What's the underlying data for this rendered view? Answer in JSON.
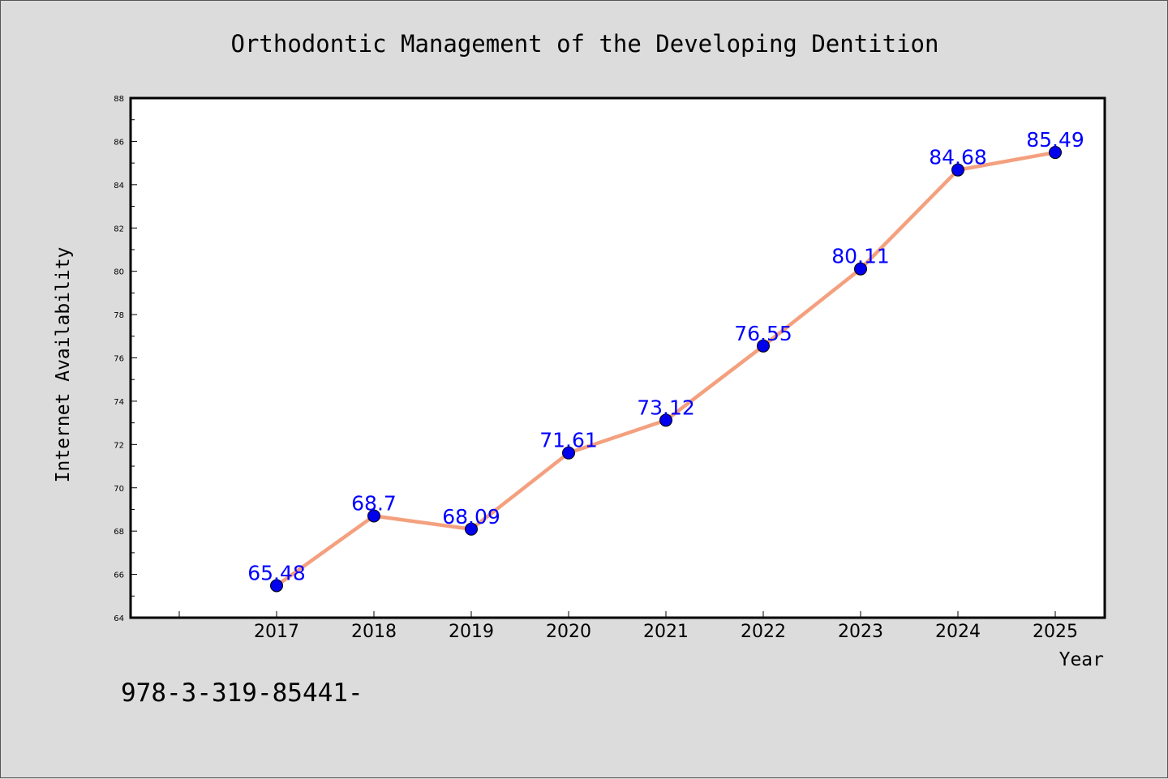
{
  "chart_data": {
    "type": "line",
    "title": "Orthodontic Management of the Developing Dentition",
    "xlabel": "Year",
    "ylabel": "Internet Availability",
    "categories": [
      "2017",
      "2018",
      "2019",
      "2020",
      "2021",
      "2022",
      "2023",
      "2024",
      "2025"
    ],
    "series": [
      {
        "values": [
          65.48,
          68.7,
          68.09,
          71.61,
          73.12,
          76.55,
          80.11,
          84.68,
          85.49
        ],
        "data_labels": [
          "65.48",
          "68.7",
          "68.09",
          "71.61",
          "73.12",
          "76.55",
          "80.11",
          "84.68",
          "85.49"
        ],
        "line_color": "#f4a07e",
        "marker_color": "#0000ee"
      }
    ],
    "ylim": [
      64,
      88
    ],
    "yticks": [
      "64",
      "66",
      "68",
      "70",
      "72",
      "74",
      "76",
      "78",
      "80",
      "82",
      "84",
      "86",
      "88"
    ],
    "grid": false,
    "legend": "none",
    "colors": {
      "background": "#dcdcdc",
      "plot_area": "#ffffff",
      "data_label": "#0000ff"
    }
  },
  "footer_text": "978-3-319-85441-"
}
